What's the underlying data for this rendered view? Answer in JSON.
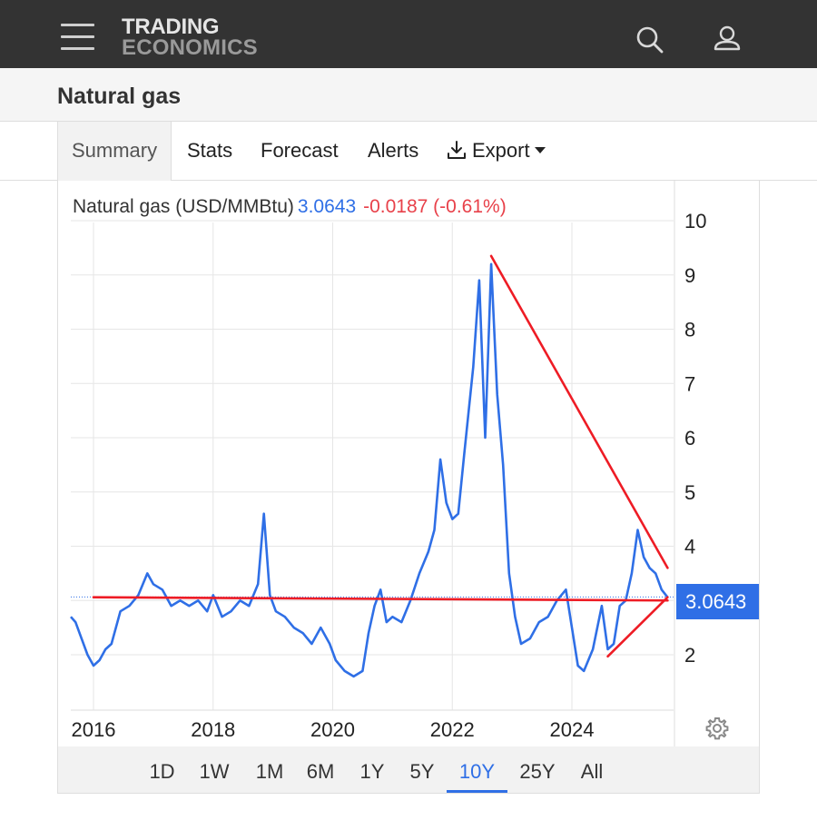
{
  "header": {
    "logo_line1": "TRADING",
    "logo_line2": "ECONOMICS",
    "icons": [
      "menu-icon",
      "search-icon",
      "user-icon"
    ]
  },
  "page": {
    "title": "Natural gas"
  },
  "tabs": [
    {
      "label": "Summary",
      "active": true
    },
    {
      "label": "Stats"
    },
    {
      "label": "Forecast"
    },
    {
      "label": "Alerts"
    },
    {
      "label": "Export",
      "icon": "download-icon"
    }
  ],
  "legend": {
    "name": "Natural gas (USD/MMBtu)",
    "value": "3.0643",
    "change": "-0.0187 (-0.61%)"
  },
  "price_tag": "3.0643",
  "ranges": [
    {
      "label": "1D"
    },
    {
      "label": "1W"
    },
    {
      "label": "1M"
    },
    {
      "label": "6M"
    },
    {
      "label": "1Y"
    },
    {
      "label": "5Y"
    },
    {
      "label": "10Y",
      "active": true
    },
    {
      "label": "25Y"
    },
    {
      "label": "All"
    }
  ],
  "colors": {
    "series": "#2f6fe6",
    "trendline": "#ee1c25",
    "accent": "#2f6fe6",
    "negative": "#e8414a",
    "topbar": "#333333"
  },
  "chart_data": {
    "type": "line",
    "yticks": [
      "2",
      "3",
      "4",
      "5",
      "6",
      "7",
      "8",
      "9",
      "10"
    ],
    "xticks": [
      "2016",
      "2018",
      "2020",
      "2022",
      "2024"
    ],
    "ylim": [
      1,
      10.5
    ],
    "xlim": [
      2015.6,
      2025.65
    ],
    "grid": true,
    "series": [
      {
        "x": [
          2015.62,
          2015.7,
          2015.8,
          2015.9,
          2016.0,
          2016.1,
          2016.2,
          2016.3,
          2016.45,
          2016.6,
          2016.75,
          2016.9,
          2017.0,
          2017.15,
          2017.3,
          2017.45,
          2017.6,
          2017.75,
          2017.9,
          2018.0,
          2018.15,
          2018.3,
          2018.45,
          2018.6,
          2018.75,
          2018.85,
          2018.95,
          2019.05,
          2019.2,
          2019.35,
          2019.5,
          2019.65,
          2019.8,
          2019.95,
          2020.05,
          2020.2,
          2020.35,
          2020.5,
          2020.6,
          2020.7,
          2020.8,
          2020.9,
          2021.0,
          2021.15,
          2021.3,
          2021.45,
          2021.6,
          2021.7,
          2021.8,
          2021.9,
          2022.0,
          2022.1,
          2022.2,
          2022.35,
          2022.45,
          2022.55,
          2022.65,
          2022.75,
          2022.85,
          2022.95,
          2023.05,
          2023.15,
          2023.3,
          2023.45,
          2023.6,
          2023.75,
          2023.9,
          2024.0,
          2024.1,
          2024.2,
          2024.35,
          2024.5,
          2024.6,
          2024.7,
          2024.8,
          2024.9,
          2025.0,
          2025.1,
          2025.2,
          2025.3,
          2025.4,
          2025.5,
          2025.6
        ],
        "y": [
          2.7,
          2.6,
          2.3,
          2.0,
          1.8,
          1.9,
          2.1,
          2.2,
          2.8,
          2.9,
          3.1,
          3.5,
          3.3,
          3.2,
          2.9,
          3.0,
          2.9,
          3.0,
          2.8,
          3.1,
          2.7,
          2.8,
          3.0,
          2.9,
          3.3,
          4.6,
          3.1,
          2.8,
          2.7,
          2.5,
          2.4,
          2.2,
          2.5,
          2.2,
          1.9,
          1.7,
          1.6,
          1.7,
          2.4,
          2.9,
          3.2,
          2.6,
          2.7,
          2.6,
          3.0,
          3.5,
          3.9,
          4.3,
          5.6,
          4.8,
          4.5,
          4.6,
          5.7,
          7.3,
          8.9,
          6.0,
          9.2,
          6.8,
          5.5,
          3.5,
          2.7,
          2.2,
          2.3,
          2.6,
          2.7,
          3.0,
          3.2,
          2.5,
          1.8,
          1.7,
          2.1,
          2.9,
          2.1,
          2.2,
          2.9,
          3.0,
          3.5,
          4.3,
          3.8,
          3.6,
          3.5,
          3.2,
          3.06
        ]
      }
    ],
    "trendlines": [
      {
        "from": [
          2016.0,
          3.06
        ],
        "to": [
          2025.6,
          3.0
        ]
      },
      {
        "from": [
          2022.65,
          9.35
        ],
        "to": [
          2025.6,
          3.6
        ]
      },
      {
        "from": [
          2024.6,
          1.97
        ],
        "to": [
          2025.6,
          3.06
        ]
      }
    ],
    "last_value": 3.0643
  }
}
